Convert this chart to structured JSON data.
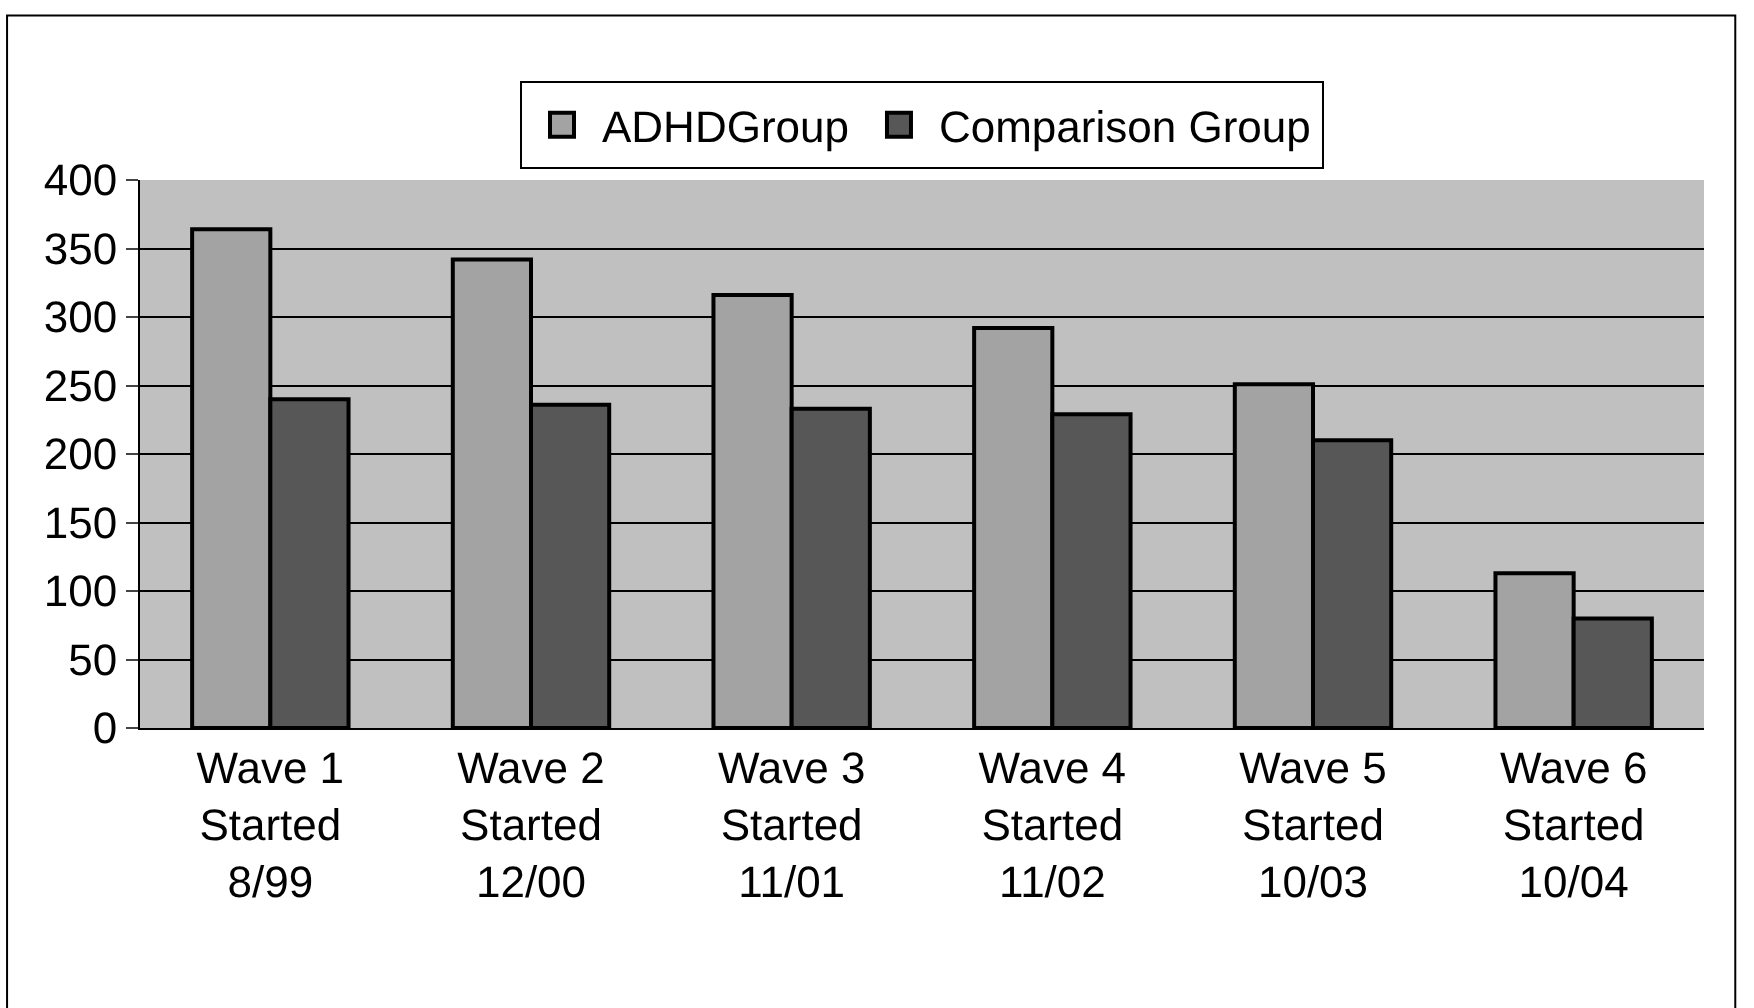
{
  "chart_data": {
    "type": "bar",
    "categories": [
      "Wave 1\nStarted\n8/99",
      "Wave 2\nStarted\n12/00",
      "Wave 3\nStarted\n11/01",
      "Wave 4\nStarted\n11/02",
      "Wave 5\nStarted\n10/03",
      "Wave 6\nStarted\n10/04"
    ],
    "series": [
      {
        "name": "ADHDGroup",
        "color": "#a3a3a3",
        "values": [
          364,
          342,
          316,
          292,
          251,
          113
        ]
      },
      {
        "name": "Comparison Group",
        "color": "#575757",
        "values": [
          240,
          236,
          233,
          229,
          210,
          80
        ]
      }
    ],
    "ylim": [
      0,
      400
    ],
    "yticks": [
      0,
      50,
      100,
      150,
      200,
      250,
      300,
      350,
      400
    ],
    "grid": "y",
    "legend": "top"
  }
}
